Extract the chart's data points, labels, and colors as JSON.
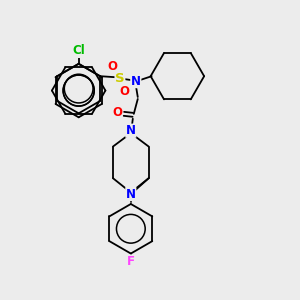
{
  "background_color": "#ececec",
  "bond_color": "#000000",
  "atom_colors": {
    "N": "#0000ff",
    "O": "#ff0000",
    "S": "#cccc00",
    "Cl": "#00bb00",
    "F": "#ff44ff",
    "C": "#000000"
  },
  "figsize": [
    3.0,
    3.0
  ],
  "dpi": 100,
  "lw": 1.3,
  "fs": 8.5
}
